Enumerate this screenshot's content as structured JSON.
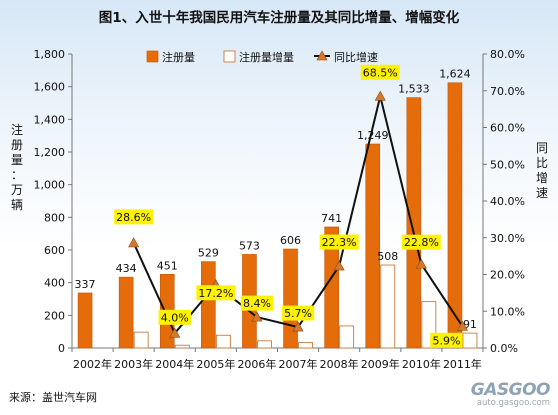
{
  "title": "图1、入世十年我国民用汽车注册量及其同比增量、增幅变化",
  "source": "来源：盖世汽车网",
  "watermark": {
    "brand": "GASGOO",
    "url": "auto.gasgoo.com"
  },
  "colors": {
    "registration": "#E46C0A",
    "increment_fill": "#FFFFFF",
    "increment_stroke": "#C77A3A",
    "growth_line": "#111111",
    "growth_marker": "#D9782B",
    "label_highlight": "#FFF200"
  },
  "chart_data": {
    "type": "bar",
    "categories": [
      "2002年",
      "2003年",
      "2004年",
      "2005年",
      "2006年",
      "2007年",
      "2008年",
      "2009年",
      "2010年",
      "2011年"
    ],
    "series": [
      {
        "name": "注册量",
        "type": "bar",
        "axis": "left",
        "values": [
          337,
          434,
          451,
          529,
          573,
          606,
          741,
          1249,
          1533,
          1624
        ],
        "labels": [
          "337",
          "434",
          "451",
          "529",
          "573",
          "606",
          "741",
          "1,249",
          "1,533",
          "1,624"
        ]
      },
      {
        "name": "注册量增量",
        "type": "bar",
        "axis": "left",
        "values": [
          null,
          97,
          17,
          78,
          44,
          33,
          135,
          508,
          284,
          91
        ],
        "labels": [
          null,
          null,
          null,
          null,
          null,
          null,
          null,
          "508",
          null,
          "91"
        ]
      },
      {
        "name": "同比增速",
        "type": "line",
        "axis": "right",
        "values": [
          null,
          28.6,
          4.0,
          17.2,
          8.4,
          5.7,
          22.3,
          68.5,
          22.8,
          5.9
        ],
        "labels": [
          null,
          "28.6%",
          "4.0%",
          "17.2%",
          "8.4%",
          "5.7%",
          "22.3%",
          "68.5%",
          "22.8%",
          "5.9%"
        ]
      }
    ],
    "y_left": {
      "label": "注册量：万辆",
      "min": 0,
      "max": 1800,
      "ticks": [
        "0",
        "200",
        "400",
        "600",
        "800",
        "1,000",
        "1,200",
        "1,400",
        "1,600",
        "1,800"
      ]
    },
    "y_right": {
      "label": "同比增速",
      "min": 0,
      "max": 80,
      "ticks": [
        "0.0%",
        "10.0%",
        "20.0%",
        "30.0%",
        "40.0%",
        "50.0%",
        "60.0%",
        "70.0%",
        "80.0%"
      ]
    },
    "legend_position": "top",
    "grid": false
  }
}
